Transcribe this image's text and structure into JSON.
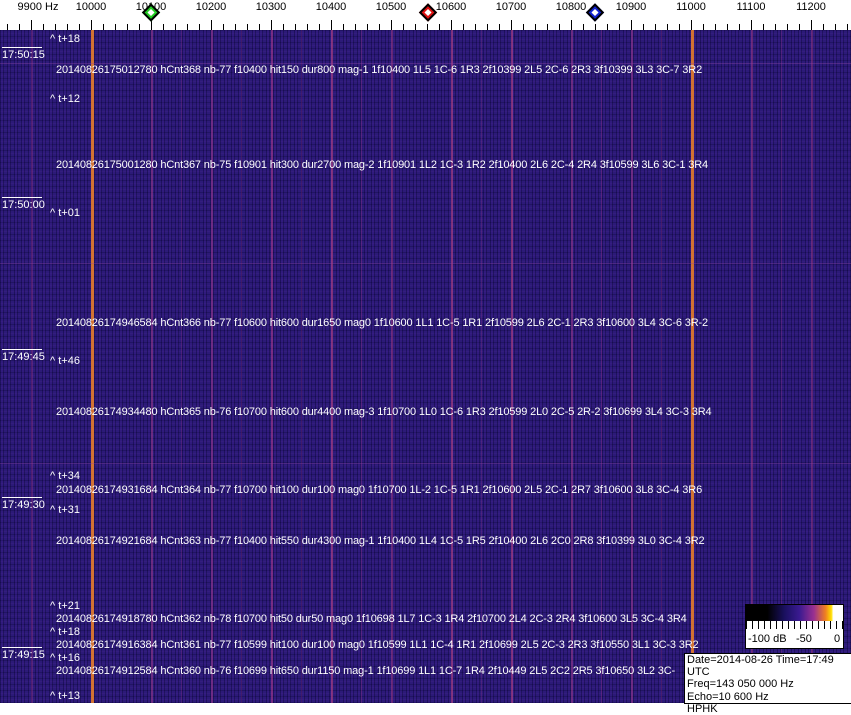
{
  "freq_axis": {
    "unit_label": "9900 Hz",
    "labels": [
      "10000",
      "10100",
      "10200",
      "10300",
      "10400",
      "10500",
      "10600",
      "10700",
      "10800",
      "10900",
      "11000",
      "11100",
      "11200"
    ],
    "markers": [
      {
        "name": "green-marker",
        "freq_hz": 10100,
        "color": "#22cc22"
      },
      {
        "name": "red-marker",
        "freq_hz": 10562,
        "color": "#dd1111"
      },
      {
        "name": "blue-marker",
        "freq_hz": 10840,
        "color": "#1122cc"
      }
    ]
  },
  "time_labels": [
    "17:50:15",
    "17:50:00",
    "17:49:45",
    "17:49:30",
    "17:49:15"
  ],
  "offset_marks": [
    "^ t+18",
    "^ t+12",
    "^ t+01",
    "^ t+46",
    "^ t+34",
    "^ t+31",
    "^ t+21",
    "^ t+18",
    "^ t+16",
    "^ t+13"
  ],
  "detections": [
    "20140826175012780 hCnt368 nb-77 f10400 hit150 dur800 mag-1 1f10400 1L5 1C-6 1R3 2f10399 2L5 2C-6 2R3 3f10399 3L3 3C-7 3R2",
    "20140826175001280 hCnt367 nb-75 f10901 hit300 dur2700 mag-2 1f10901 1L2 1C-3 1R2 2f10400 2L6 2C-4 2R4 3f10599 3L6 3C-1 3R4",
    "20140826174946584 hCnt366 nb-77 f10600 hit600 dur1650 mag0 1f10600 1L1 1C-5 1R1 2f10599 2L6 2C-1 2R3 3f10600 3L4 3C-6 3R-2",
    "20140826174934480 hCnt365 nb-76 f10700 hit600 dur4400 mag-3 1f10700 1L0 1C-6 1R3 2f10599 2L0 2C-5 2R-2 3f10699 3L4 3C-3 3R4",
    "20140826174931684 hCnt364 nb-77 f10700 hit100 dur100 mag0 1f10700 1L-2 1C-5 1R1 2f10600 2L5 2C-1 2R7 3f10600 3L8 3C-4 3R6",
    "20140826174921684 hCnt363 nb-77 f10400 hit550 dur4300 mag-1 1f10400 1L4 1C-5 1R5 2f10400 2L6 2C0 2R8 3f10399 3L0 3C-4 3R2",
    "20140826174918780 hCnt362 nb-78 f10700 hit50 dur50 mag0 1f10698 1L7 1C-3 1R4 2f10700 2L4 2C-3 2R4 3f10600 3L5 3C-4 3R4",
    "20140826174916384 hCnt361 nb-77 f10599 hit100 dur100 mag0 1f10599 1L1 1C-4 1R1 2f10699 2L5 2C-3 2R3 3f10550 3L1 3C-3 3R2",
    "20140826174912584 hCnt360 nb-76 f10699 hit650 dur1150 mag-1 1f10699 1L1 1C-7 1R4 2f10449 2L5 2C2 2R5 3f10650 3L2 3C-"
  ],
  "color_scale": {
    "labels": [
      "-100 dB",
      "-50",
      "0"
    ]
  },
  "info": {
    "date_time": "Date=2014-08-26 Time=17:49 UTC",
    "freq": "Freq=143 050 000 Hz",
    "echo": "Echo=10 600 Hz",
    "station": "HPHK"
  }
}
